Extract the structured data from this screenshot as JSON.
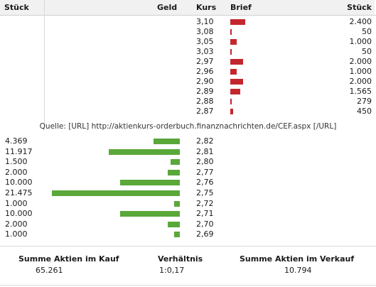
{
  "header": {
    "stueck_left": "Stück",
    "geld": "Geld",
    "kurs": "Kurs",
    "brief": "Brief",
    "stueck_right": "Stück"
  },
  "sell_rows": [
    {
      "kurs": "3,10",
      "stueck": "2.400"
    },
    {
      "kurs": "3,08",
      "stueck": "50"
    },
    {
      "kurs": "3,05",
      "stueck": "1.000"
    },
    {
      "kurs": "3,03",
      "stueck": "50"
    },
    {
      "kurs": "2,97",
      "stueck": "2.000"
    },
    {
      "kurs": "2,96",
      "stueck": "1.000"
    },
    {
      "kurs": "2,90",
      "stueck": "2.000"
    },
    {
      "kurs": "2,89",
      "stueck": "1.565"
    },
    {
      "kurs": "2,88",
      "stueck": "279"
    },
    {
      "kurs": "2,87",
      "stueck": "450"
    }
  ],
  "quelle": "Quelle: [URL] http://aktienkurs-orderbuch.finanznachrichten.de/CEF.aspx [/URL]",
  "buy_rows": [
    {
      "stueck": "4.369",
      "kurs": "2,82"
    },
    {
      "stueck": "11.917",
      "kurs": "2,81"
    },
    {
      "stueck": "1.500",
      "kurs": "2,80"
    },
    {
      "stueck": "2.000",
      "kurs": "2,77"
    },
    {
      "stueck": "10.000",
      "kurs": "2,76"
    },
    {
      "stueck": "21.475",
      "kurs": "2,75"
    },
    {
      "stueck": "1.000",
      "kurs": "2,72"
    },
    {
      "stueck": "10.000",
      "kurs": "2,71"
    },
    {
      "stueck": "2.000",
      "kurs": "2,70"
    },
    {
      "stueck": "1.000",
      "kurs": "2,69"
    }
  ],
  "summary": {
    "kauf_label": "Summe Aktien im Kauf",
    "kauf_value": "65.261",
    "verh_label": "Verhältnis",
    "verh_value": "1:0,17",
    "verkauf_label": "Summe Aktien im Verkauf",
    "verkauf_value": "10.794"
  },
  "colors": {
    "sell_bar": "#c4262e",
    "buy_bar": "#5aa83a",
    "header_bg": "#f1f1f1"
  }
}
